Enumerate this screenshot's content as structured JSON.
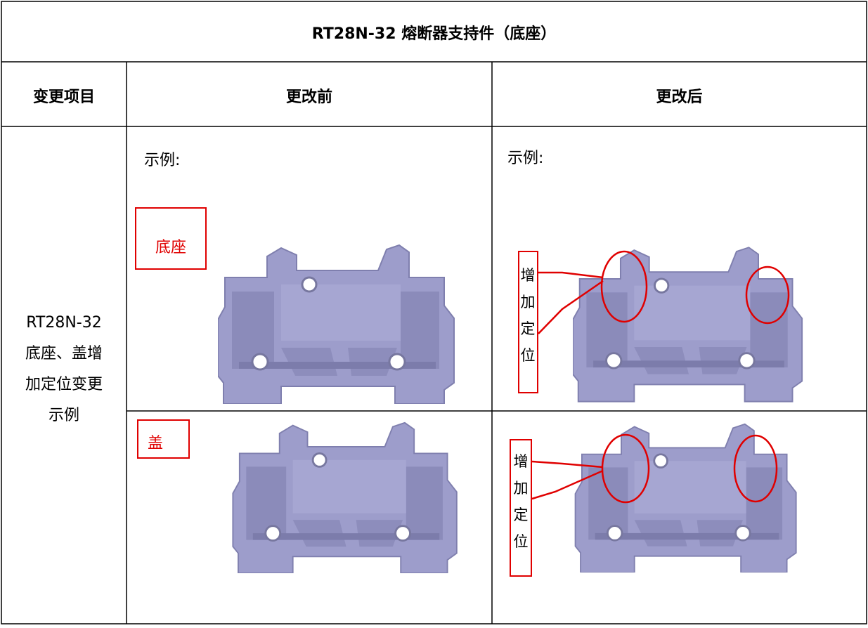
{
  "title": "RT28N-32 熔断器支持件（底座）",
  "table": {
    "headers": [
      "变更项目",
      "更改前",
      "更改后"
    ],
    "rows": [
      {
        "item": "RT28N-32底座、盖增加定位变更示例",
        "before": {
          "caption": "示例:",
          "labels": [
            "底座",
            "盖"
          ]
        },
        "after": {
          "caption": "示例:",
          "annotations": [
            "增加定位",
            "增加定位"
          ]
        }
      }
    ]
  }
}
